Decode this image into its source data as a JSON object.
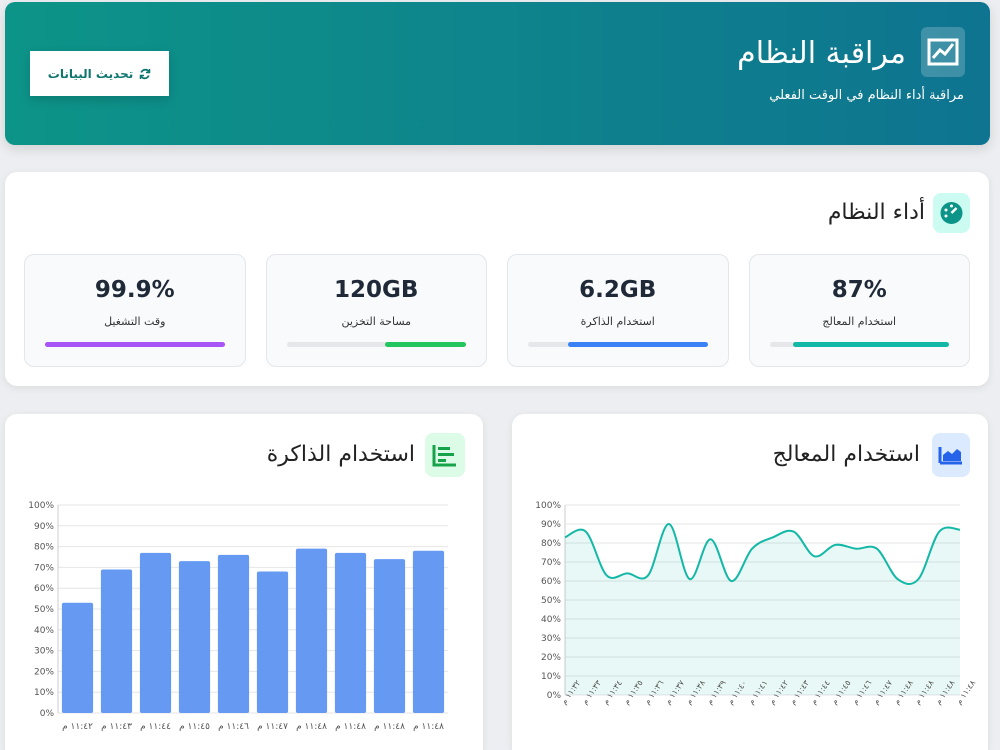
{
  "header": {
    "title": "مراقبة النظام",
    "subtitle": "مراقبة أداء النظام في الوقت الفعلي",
    "refresh_button": "تحديث البيانات"
  },
  "performance": {
    "title": "أداء النظام",
    "metrics": [
      {
        "value": "87%",
        "label": "استخدام المعالج",
        "progress": 87,
        "color": "#14b8a6"
      },
      {
        "value": "6.2GB",
        "label": "استخدام الذاكرة",
        "progress": 78,
        "color": "#3b82f6"
      },
      {
        "value": "120GB",
        "label": "مساحة التخزين",
        "progress": 45,
        "color": "#22c55e"
      },
      {
        "value": "99.9%",
        "label": "وقت التشغيل",
        "progress": 100,
        "color": "#a855f7"
      }
    ]
  },
  "chart_data": [
    {
      "type": "line",
      "title": "استخدام المعالج",
      "color": "#14b8a6",
      "area": true,
      "grid": true,
      "categories": [
        "١١:٣٢ م",
        "١١:٣٣ م",
        "١١:٣٤ م",
        "١١:٣٥ م",
        "١١:٣٦ م",
        "١١:٣٧ م",
        "١١:٣٨ م",
        "١١:٣٩ م",
        "١١:٤٠ م",
        "١١:٤١ م",
        "١١:٤٢ م",
        "١١:٤٣ م",
        "١١:٤٤ م",
        "١١:٤٥ م",
        "١١:٤٦ م",
        "١١:٤٧ م",
        "١١:٤٨ م",
        "١١:٤٨ م",
        "١١:٤٨ م",
        "١١:٤٨ م"
      ],
      "values": [
        83,
        86,
        63,
        64,
        63,
        90,
        61,
        82,
        60,
        77,
        83,
        86,
        73,
        79,
        77,
        77,
        61,
        61,
        86,
        87
      ],
      "ylim": [
        0,
        100
      ],
      "yticks": [
        {
          "value": 0,
          "label": "0%"
        },
        {
          "value": 10,
          "label": "10%"
        },
        {
          "value": 20,
          "label": "20%"
        },
        {
          "value": 30,
          "label": "30%"
        },
        {
          "value": 40,
          "label": "40%"
        },
        {
          "value": 50,
          "label": "50%"
        },
        {
          "value": 60,
          "label": "60%"
        },
        {
          "value": 70,
          "label": "70%"
        },
        {
          "value": 80,
          "label": "80%"
        },
        {
          "value": 90,
          "label": "90%"
        },
        {
          "value": 100,
          "label": "100%"
        }
      ]
    },
    {
      "type": "bar",
      "title": "استخدام الذاكرة",
      "color": "#6699f2",
      "grid": true,
      "categories": [
        "١١:٤٢ م",
        "١١:٤٣ م",
        "١١:٤٤ م",
        "١١:٤٥ م",
        "١١:٤٦ م",
        "١١:٤٧ م",
        "١١:٤٨ م",
        "١١:٤٨ م",
        "١١:٤٨ م",
        "١١:٤٨ م"
      ],
      "values": [
        53,
        69,
        77,
        73,
        76,
        68,
        79,
        77,
        74,
        78
      ],
      "ylim": [
        0,
        100
      ],
      "yticks": [
        {
          "value": 0,
          "label": "0%"
        },
        {
          "value": 10,
          "label": "10%"
        },
        {
          "value": 20,
          "label": "20%"
        },
        {
          "value": 30,
          "label": "30%"
        },
        {
          "value": 40,
          "label": "40%"
        },
        {
          "value": 50,
          "label": "50%"
        },
        {
          "value": 60,
          "label": "60%"
        },
        {
          "value": 70,
          "label": "70%"
        },
        {
          "value": 80,
          "label": "80%"
        },
        {
          "value": 90,
          "label": "90%"
        },
        {
          "value": 100,
          "label": "100%"
        }
      ]
    }
  ]
}
